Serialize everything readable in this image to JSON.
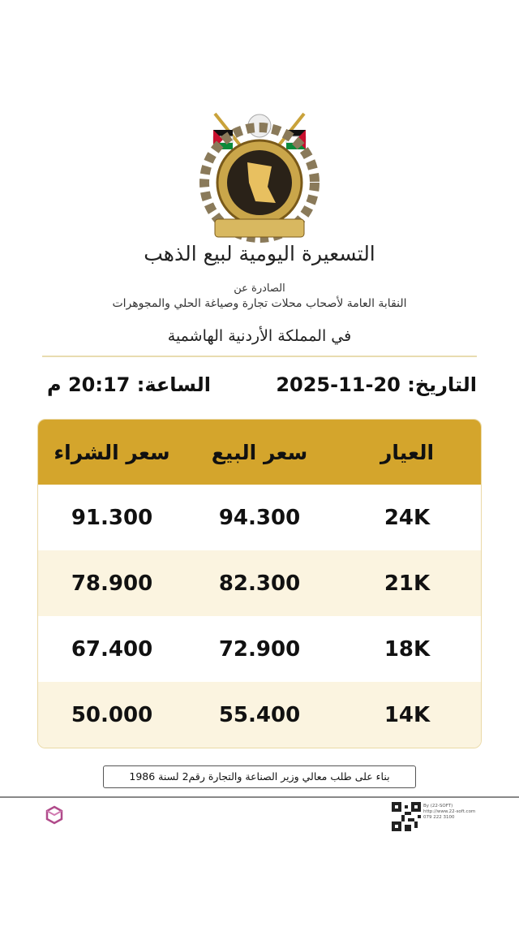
{
  "header": {
    "title": "التسعيرة اليومية لبيع الذهب",
    "issued_by": "الصادرة عن",
    "union": "النقابة العامة لأصحاب محلات تجارة وصياغة الحلي والمجوهرات",
    "country": "في المملكة الأردنية الهاشمية"
  },
  "meta": {
    "date": "التاريخ: 20-11-2025",
    "time": "الساعة: 20:17 م"
  },
  "table": {
    "columns": [
      "العيار",
      "سعر البيع",
      "سعر الشراء"
    ],
    "rows": [
      {
        "karat": "24K",
        "sell": "94.300",
        "buy": "91.300"
      },
      {
        "karat": "21K",
        "sell": "82.300",
        "buy": "78.900"
      },
      {
        "karat": "18K",
        "sell": "72.900",
        "buy": "67.400"
      },
      {
        "karat": "14K",
        "sell": "55.400",
        "buy": "50.000"
      }
    ]
  },
  "note": "بناء على طلب معالي وزير الصناعة والتجارة رقم2 لسنة 1986",
  "footer": {
    "credit": [
      "By (22-SOFT)",
      "http://www.22-soft.com",
      "079 222 3100"
    ]
  },
  "colors": {
    "header_gold": "#D4A52C",
    "alt_row": "#FBF4E0"
  }
}
